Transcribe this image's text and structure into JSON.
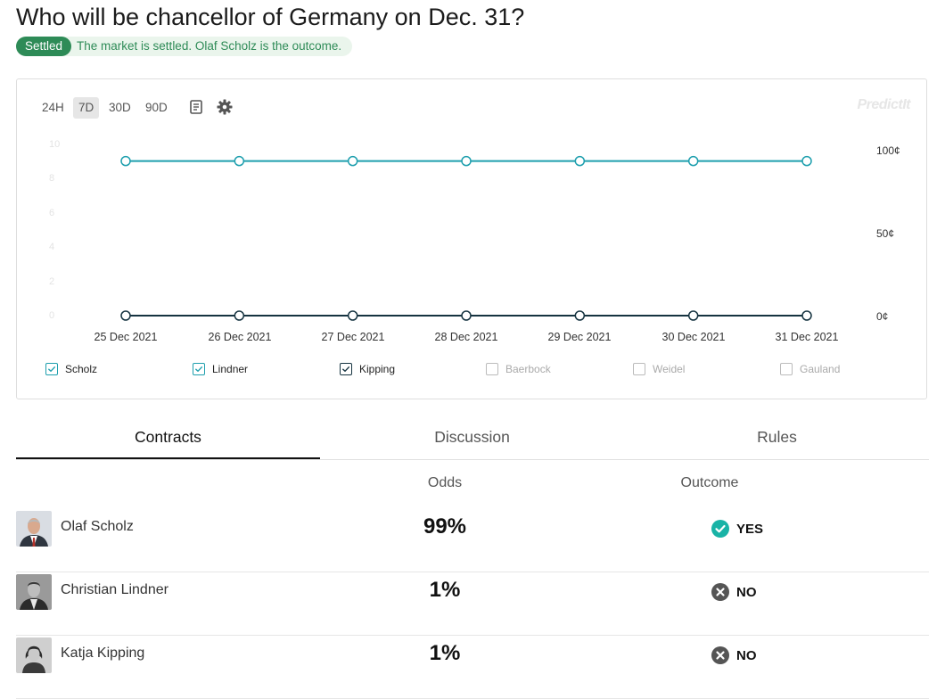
{
  "header": {
    "title": "Who will be chancellor of Germany on Dec. 31?",
    "badge": "Settled",
    "status_message": "The market is settled. Olaf Scholz is the outcome."
  },
  "chart": {
    "ranges": [
      "24H",
      "7D",
      "30D",
      "90D"
    ],
    "active_range": "7D",
    "brand": "PredictIt",
    "icons": [
      "notes-icon",
      "gear-icon"
    ],
    "legend": [
      {
        "label": "Scholz",
        "checked": true,
        "color": "#1e9fae"
      },
      {
        "label": "Lindner",
        "checked": true,
        "color": "#1e9fae"
      },
      {
        "label": "Kipping",
        "checked": true,
        "color": "#153340"
      },
      {
        "label": "Baerbock",
        "checked": false,
        "color": "#bbbbbb"
      },
      {
        "label": "Weidel",
        "checked": false,
        "color": "#bbbbbb"
      },
      {
        "label": "Gauland",
        "checked": false,
        "color": "#bbbbbb"
      }
    ]
  },
  "chart_data": {
    "type": "line",
    "x": [
      "25 Dec 2021",
      "26 Dec 2021",
      "27 Dec 2021",
      "28 Dec 2021",
      "29 Dec 2021",
      "30 Dec 2021",
      "31 Dec 2021"
    ],
    "y_left_ticks": [
      "10",
      "8",
      "6",
      "4",
      "2",
      "0"
    ],
    "y_right_ticks": [
      "100¢",
      "50¢",
      "0¢"
    ],
    "ylim": [
      0,
      100
    ],
    "series": [
      {
        "name": "Scholz",
        "values": [
          95,
          95,
          95,
          95,
          95,
          95,
          95
        ],
        "color": "#1e9fae"
      },
      {
        "name": "Kipping",
        "values": [
          0,
          0,
          0,
          0,
          0,
          0,
          0
        ],
        "color": "#153340"
      }
    ]
  },
  "tabs": [
    {
      "label": "Contracts",
      "active": true
    },
    {
      "label": "Discussion",
      "active": false
    },
    {
      "label": "Rules",
      "active": false
    }
  ],
  "table": {
    "odds_header": "Odds",
    "outcome_header": "Outcome",
    "rows": [
      {
        "name": "Olaf Scholz",
        "odds": "99%",
        "outcome": "YES",
        "outcome_kind": "yes"
      },
      {
        "name": "Christian Lindner",
        "odds": "1%",
        "outcome": "NO",
        "outcome_kind": "no"
      },
      {
        "name": "Katja Kipping",
        "odds": "1%",
        "outcome": "NO",
        "outcome_kind": "no"
      }
    ]
  },
  "colors": {
    "settled_green": "#2e8b57",
    "yes_teal": "#19b3a6",
    "no_gray": "#555555"
  }
}
